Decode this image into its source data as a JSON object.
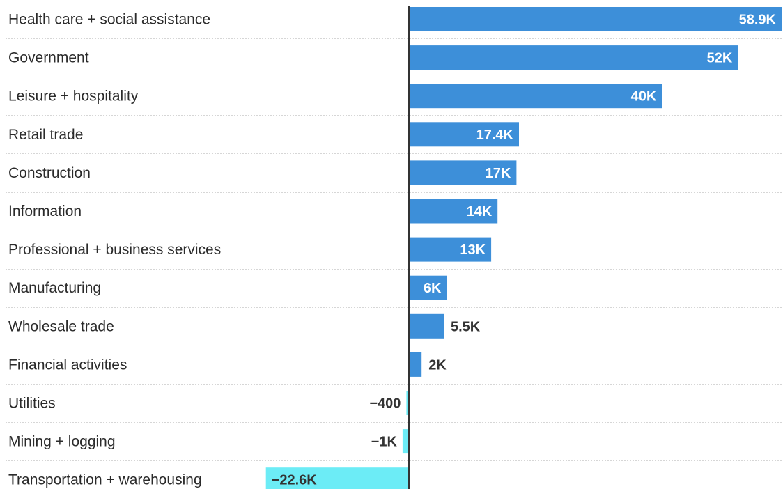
{
  "chart_data": {
    "type": "bar",
    "orientation": "horizontal",
    "title": "",
    "xlabel": "",
    "ylabel": "",
    "xlim": [
      -30000,
      62000
    ],
    "grid": false,
    "legend": "none",
    "colors": {
      "positive": "#3d8fd9",
      "negative": "#6cecf6",
      "axis": "#333333",
      "separator": "#d6d6d6",
      "label_text": "#2b2b2b",
      "value_inside": "#ffffff",
      "value_outside": "#333333"
    },
    "categories": [
      "Health care + social assistance",
      "Government",
      "Leisure + hospitality",
      "Retail trade",
      "Construction",
      "Information",
      "Professional + business services",
      "Manufacturing",
      "Wholesale trade",
      "Financial activities",
      "Utilities",
      "Mining + logging",
      "Transportation + warehousing"
    ],
    "values": [
      58900,
      52000,
      40000,
      17400,
      17000,
      14000,
      13000,
      6000,
      5500,
      2000,
      -400,
      -1000,
      -22600
    ],
    "data_labels": [
      "58.9K",
      "52K",
      "40K",
      "17.4K",
      "17K",
      "14K",
      "13K",
      "6K",
      "5.5K",
      "2K",
      "−400",
      "−1K",
      "−22.6K"
    ]
  }
}
